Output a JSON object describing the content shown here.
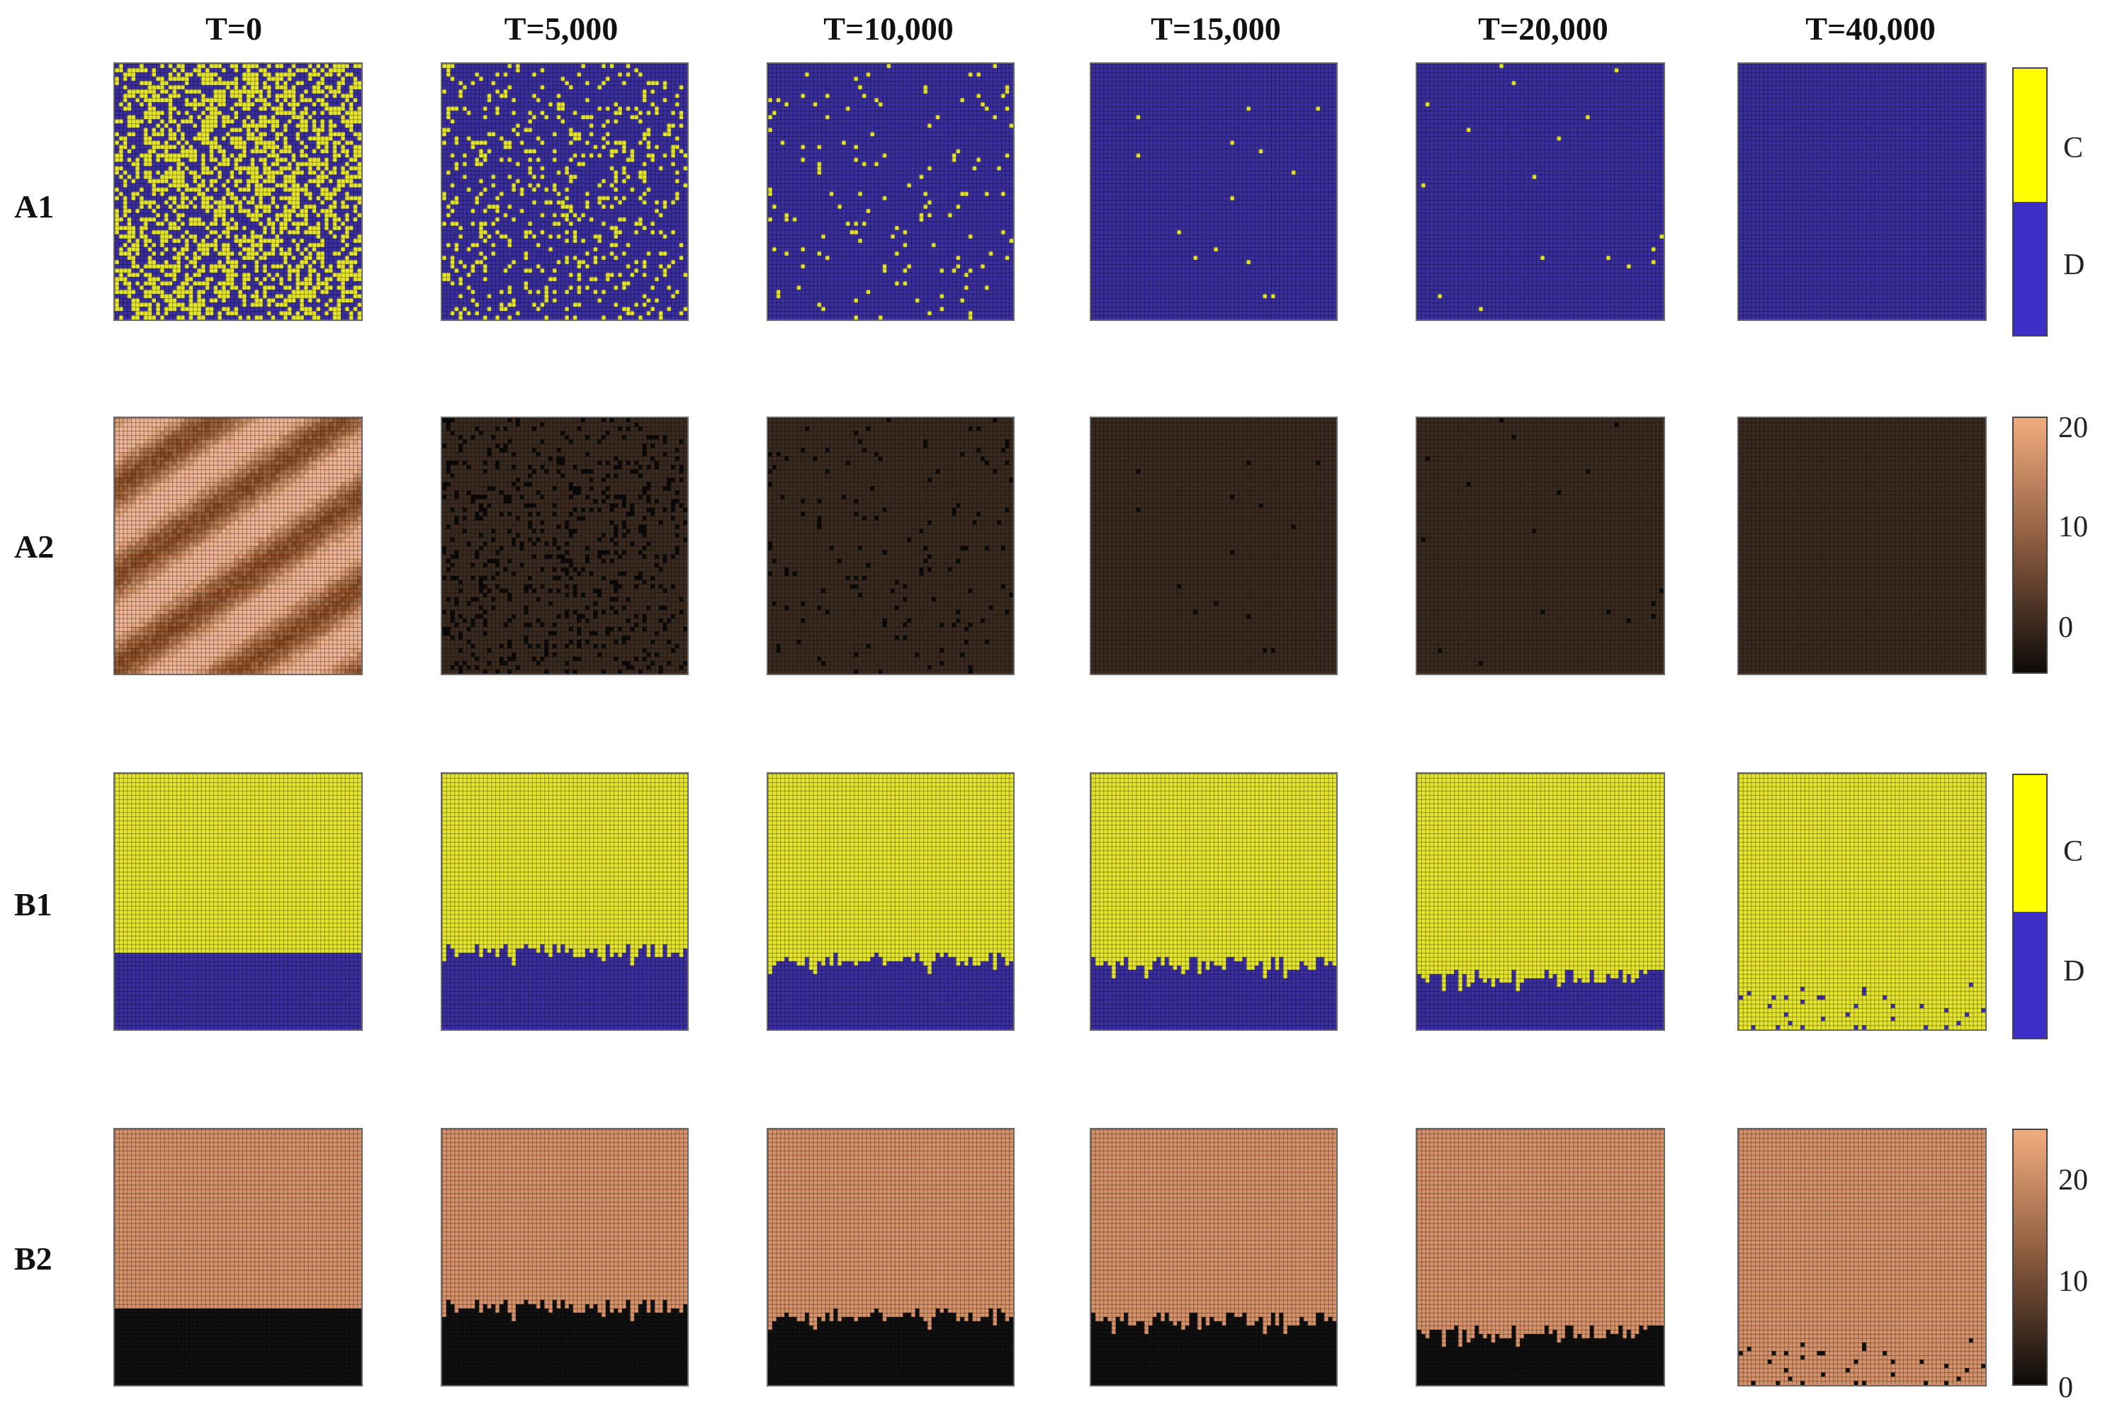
{
  "column_titles": [
    "T=0",
    "T=5,000",
    "T=10,000",
    "T=15,000",
    "T=20,000",
    "T=40,000"
  ],
  "row_labels": [
    "A1",
    "A2",
    "B1",
    "B2"
  ],
  "colorbars": {
    "strategy_labels": [
      "C",
      "D"
    ],
    "a2_ticks": [
      "20",
      "10",
      "0"
    ],
    "b2_ticks": [
      "20",
      "10",
      "0"
    ]
  },
  "colors": {
    "cooperator": "#e6e62e",
    "defector": "#3b2fa0",
    "grid_dark": "#3a3a20",
    "payoff_high": "#f2ad7e",
    "payoff_low": "#0d0b0a"
  },
  "lattice": {
    "a1_cooperator_fraction": [
      0.5,
      0.17,
      0.03,
      0.008,
      0.003,
      0.0
    ],
    "b1_defector_rows_fraction": [
      0.3,
      0.28,
      0.25,
      0.22,
      0.18,
      0.0
    ],
    "b1_t40000_defector_fraction": 0.05
  }
}
